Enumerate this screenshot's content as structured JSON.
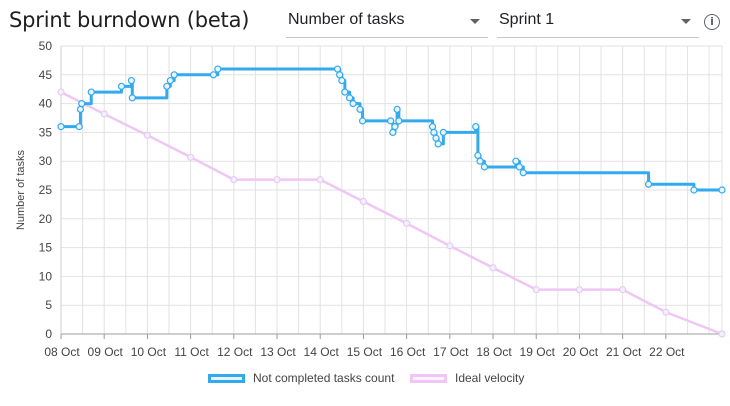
{
  "header": {
    "title": "Sprint burndown (beta)",
    "metric_select": {
      "value": "Number of tasks"
    },
    "sprint_select": {
      "value": "Sprint 1"
    },
    "info_icon": "info-icon"
  },
  "colors": {
    "actual": "#33aaee",
    "ideal": "#f0c6f5",
    "grid": "#e2e2e2",
    "axis_text": "#444444"
  },
  "chart_data": {
    "type": "line",
    "title": "",
    "xlabel": "",
    "ylabel": "Number of tasks",
    "xlim": [
      0,
      15.3
    ],
    "ylim": [
      0,
      50
    ],
    "y_ticks": [
      0,
      5,
      10,
      15,
      20,
      25,
      30,
      35,
      40,
      45,
      50
    ],
    "x_ticks": [
      "08 Oct",
      "09 Oct",
      "10 Oct",
      "11 Oct",
      "12 Oct",
      "13 Oct",
      "14 Oct",
      "15 Oct",
      "16 Oct",
      "17 Oct",
      "18 Oct",
      "19 Oct",
      "20 Oct",
      "21 Oct",
      "22 Oct"
    ],
    "grid": true,
    "legend_position": "bottom",
    "series": [
      {
        "name": "Not completed tasks count",
        "step": true,
        "points": [
          [
            0.0,
            36
          ],
          [
            0.42,
            36
          ],
          [
            0.45,
            39
          ],
          [
            0.48,
            40
          ],
          [
            0.7,
            42
          ],
          [
            1.4,
            43
          ],
          [
            1.63,
            44
          ],
          [
            1.65,
            41
          ],
          [
            2.45,
            43
          ],
          [
            2.53,
            44
          ],
          [
            2.62,
            45
          ],
          [
            3.53,
            45
          ],
          [
            3.63,
            46
          ],
          [
            6.4,
            46
          ],
          [
            6.45,
            45
          ],
          [
            6.5,
            44
          ],
          [
            6.57,
            42
          ],
          [
            6.68,
            41
          ],
          [
            6.76,
            40
          ],
          [
            6.92,
            39
          ],
          [
            6.98,
            37
          ],
          [
            7.63,
            37
          ],
          [
            7.68,
            35
          ],
          [
            7.73,
            36
          ],
          [
            7.78,
            39
          ],
          [
            7.82,
            37
          ],
          [
            8.6,
            36
          ],
          [
            8.63,
            35
          ],
          [
            8.68,
            34
          ],
          [
            8.73,
            33
          ],
          [
            8.85,
            35
          ],
          [
            9.6,
            36
          ],
          [
            9.65,
            31
          ],
          [
            9.7,
            30
          ],
          [
            9.8,
            29
          ],
          [
            10.53,
            30
          ],
          [
            10.61,
            29
          ],
          [
            10.7,
            28
          ],
          [
            13.6,
            26
          ],
          [
            14.65,
            25
          ],
          [
            15.3,
            25
          ]
        ]
      },
      {
        "name": "Ideal velocity",
        "step": false,
        "points": [
          [
            0.0,
            42
          ],
          [
            1.0,
            38.2
          ],
          [
            2.0,
            34.5
          ],
          [
            3.0,
            30.7
          ],
          [
            4.0,
            26.8
          ],
          [
            5.0,
            26.8
          ],
          [
            6.0,
            26.8
          ],
          [
            7.0,
            23
          ],
          [
            8.0,
            19.2
          ],
          [
            9.0,
            15.3
          ],
          [
            10.0,
            11.5
          ],
          [
            11.0,
            7.7
          ],
          [
            12.0,
            7.7
          ],
          [
            13.0,
            7.7
          ],
          [
            14.0,
            3.8
          ],
          [
            15.3,
            0
          ]
        ]
      }
    ]
  }
}
